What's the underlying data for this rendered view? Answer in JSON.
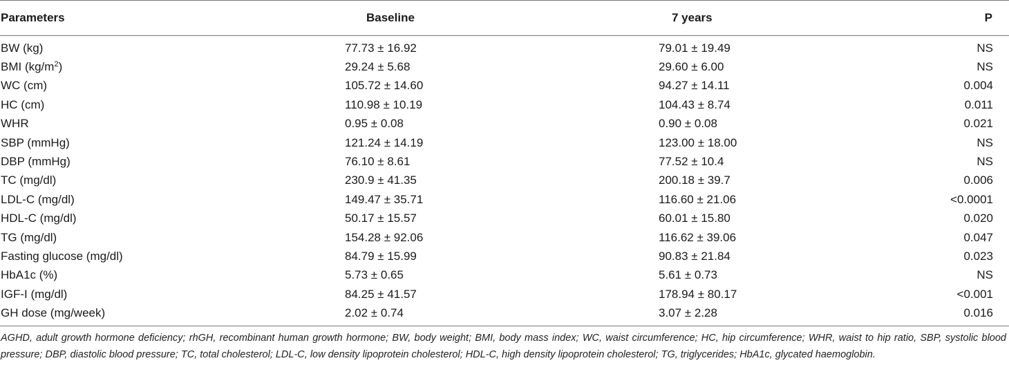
{
  "table": {
    "headers": {
      "parameters": "Parameters",
      "baseline": "Baseline",
      "seven_years": "7 years",
      "p": "P"
    },
    "rows": [
      {
        "param": "BW (kg)",
        "baseline": "77.73 ± 16.92",
        "seven_years": "79.01 ± 19.49",
        "p": "NS"
      },
      {
        "param": "BMI (kg/m",
        "param_sup": "2",
        "param_suffix": ")",
        "baseline": "29.24 ± 5.68",
        "seven_years": "29.60 ± 6.00",
        "p": "NS"
      },
      {
        "param": "WC (cm)",
        "baseline": "105.72 ± 14.60",
        "seven_years": "94.27 ± 14.11",
        "p": "0.004"
      },
      {
        "param": "HC (cm)",
        "baseline": "110.98 ± 10.19",
        "seven_years": "104.43 ± 8.74",
        "p": "0.011"
      },
      {
        "param": "WHR",
        "baseline": "0.95 ± 0.08",
        "seven_years": "0.90 ± 0.08",
        "p": "0.021"
      },
      {
        "param": "SBP (mmHg)",
        "baseline": "121.24 ± 14.19",
        "seven_years": "123.00 ± 18.00",
        "p": "NS"
      },
      {
        "param": "DBP (mmHg)",
        "baseline": "76.10 ± 8.61",
        "seven_years": "77.52 ± 10.4",
        "p": "NS"
      },
      {
        "param": "TC (mg/dl)",
        "baseline": "230.9 ± 41.35",
        "seven_years": "200.18 ± 39.7",
        "p": "0.006"
      },
      {
        "param": "LDL-C (mg/dl)",
        "baseline": "149.47 ± 35.71",
        "seven_years": "116.60 ± 21.06",
        "p": "<0.0001"
      },
      {
        "param": "HDL-C (mg/dl)",
        "baseline": "50.17 ± 15.57",
        "seven_years": "60.01 ± 15.80",
        "p": "0.020"
      },
      {
        "param": "TG (mg/dl)",
        "baseline": "154.28 ± 92.06",
        "seven_years": "116.62 ± 39.06",
        "p": "0.047"
      },
      {
        "param": "Fasting glucose (mg/dl)",
        "baseline": "84.79 ± 15.99",
        "seven_years": "90.83 ± 21.84",
        "p": "0.023"
      },
      {
        "param": "HbA1c (%)",
        "baseline": "5.73 ± 0.65",
        "seven_years": "5.61 ± 0.73",
        "p": "NS"
      },
      {
        "param": "IGF-I (mg/dl)",
        "baseline": "84.25 ± 41.57",
        "seven_years": "178.94 ± 80.17",
        "p": "<0.001"
      },
      {
        "param": "GH dose (mg/week)",
        "baseline": "2.02 ± 0.74",
        "seven_years": "3.07 ± 2.28",
        "p": "0.016"
      }
    ]
  },
  "footnote": "AGHD, adult growth hormone deficiency; rhGH, recombinant human growth hormone; BW, body weight; BMI, body mass index; WC, waist circumference; HC, hip circumference; WHR, waist to hip ratio, SBP, systolic blood pressure; DBP, diastolic blood pressure; TC, total cholesterol; LDL-C, low density lipoprotein cholesterol; HDL-C, high density lipoprotein cholesterol; TG, triglycerides; HbA1c, glycated haemoglobin."
}
